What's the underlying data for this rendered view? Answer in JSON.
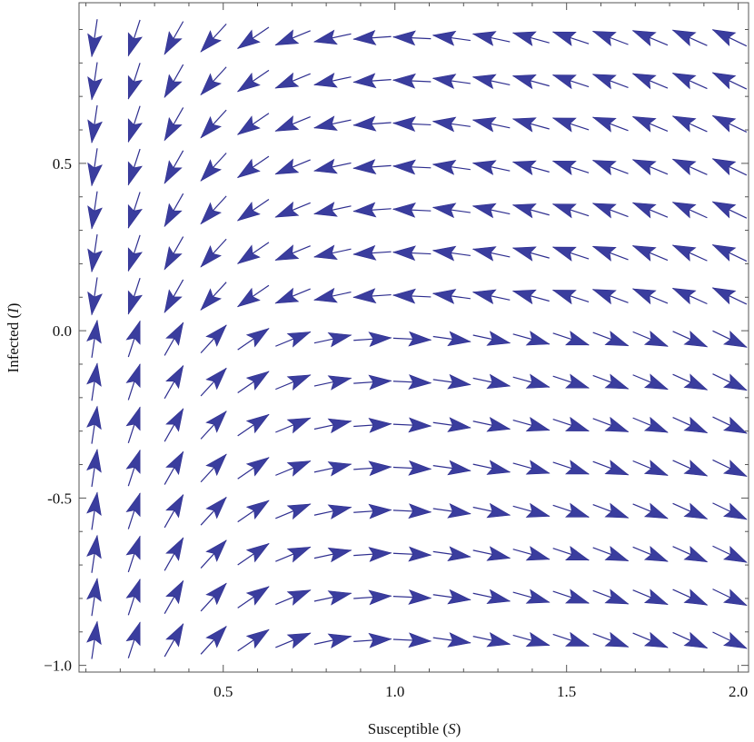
{
  "chart_data": {
    "type": "vector_field",
    "title": "",
    "xlabel": {
      "main": "Susceptible (",
      "var": "S",
      "close": ")"
    },
    "ylabel": {
      "main": "Infected (",
      "var": "I",
      "close": ")"
    },
    "xlim": [
      0.08,
      2.03
    ],
    "ylim": [
      -1.02,
      0.98
    ],
    "xticks": [
      {
        "value": 0.5,
        "label": "0.5"
      },
      {
        "value": 1.0,
        "label": "1.0"
      },
      {
        "value": 1.5,
        "label": "1.5"
      },
      {
        "value": 2.0,
        "label": "2.0"
      }
    ],
    "yticks": [
      {
        "value": 0.5,
        "label": "0.5"
      },
      {
        "value": 0.0,
        "label": "0.0"
      },
      {
        "value": -0.5,
        "label": "-0.5"
      },
      {
        "value": -1.0,
        "label": "−1.0"
      }
    ],
    "grid": false,
    "field": {
      "equations": "dS/dt = -S*I, dI/dt = S*I - I",
      "s_range": [
        0.125,
        1.975
      ],
      "i_range": [
        -0.925,
        0.875
      ],
      "grid_points": [
        17,
        15
      ]
    },
    "colors": {
      "arrow": "#3a3d9e",
      "arrow_line": "#2e2e8f",
      "frame": "#555555"
    }
  }
}
